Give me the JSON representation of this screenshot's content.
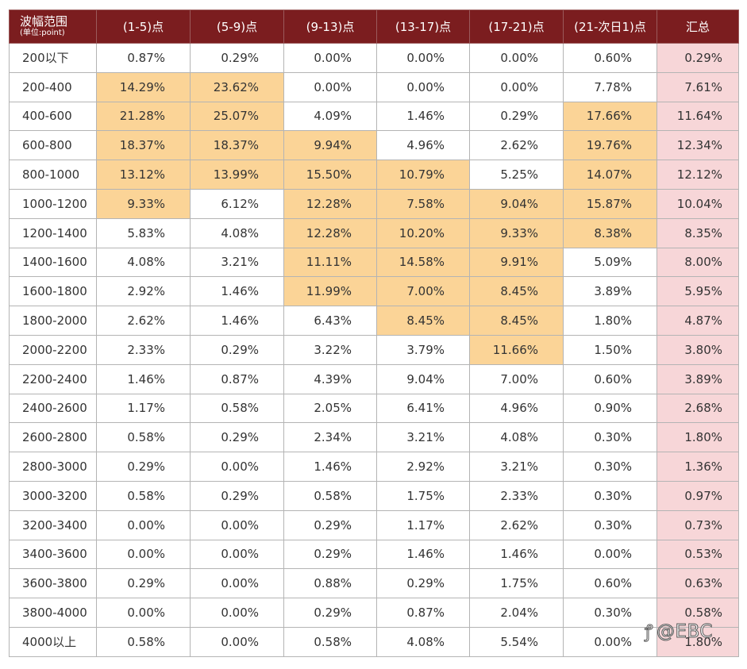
{
  "table": {
    "header": {
      "first_title": "波幅范围",
      "first_subtitle": "(单位:point)",
      "columns": [
        "(1-5)点",
        "(5-9)点",
        "(9-13)点",
        "(13-17)点",
        "(17-21)点",
        "(21-次日1)点",
        "汇总"
      ]
    },
    "colors": {
      "header_bg": "#7b1d1f",
      "highlight_bg": "#fbd497",
      "total_bg": "#f7d6d8"
    },
    "rows": [
      {
        "range": "200以下",
        "values": [
          "0.87%",
          "0.29%",
          "0.00%",
          "0.00%",
          "0.00%",
          "0.60%",
          "0.29%"
        ],
        "highlight": [
          0,
          0,
          0,
          0,
          0,
          0
        ]
      },
      {
        "range": "200-400",
        "values": [
          "14.29%",
          "23.62%",
          "0.00%",
          "0.00%",
          "0.00%",
          "7.78%",
          "7.61%"
        ],
        "highlight": [
          1,
          1,
          0,
          0,
          0,
          0
        ]
      },
      {
        "range": "400-600",
        "values": [
          "21.28%",
          "25.07%",
          "4.09%",
          "1.46%",
          "0.29%",
          "17.66%",
          "11.64%"
        ],
        "highlight": [
          1,
          1,
          0,
          0,
          0,
          1
        ]
      },
      {
        "range": "600-800",
        "values": [
          "18.37%",
          "18.37%",
          "9.94%",
          "4.96%",
          "2.62%",
          "19.76%",
          "12.34%"
        ],
        "highlight": [
          1,
          1,
          1,
          0,
          0,
          1
        ]
      },
      {
        "range": "800-1000",
        "values": [
          "13.12%",
          "13.99%",
          "15.50%",
          "10.79%",
          "5.25%",
          "14.07%",
          "12.12%"
        ],
        "highlight": [
          1,
          1,
          1,
          1,
          0,
          1
        ]
      },
      {
        "range": "1000-1200",
        "values": [
          "9.33%",
          "6.12%",
          "12.28%",
          "7.58%",
          "9.04%",
          "15.87%",
          "10.04%"
        ],
        "highlight": [
          1,
          0,
          1,
          1,
          1,
          1
        ]
      },
      {
        "range": "1200-1400",
        "values": [
          "5.83%",
          "4.08%",
          "12.28%",
          "10.20%",
          "9.33%",
          "8.38%",
          "8.35%"
        ],
        "highlight": [
          0,
          0,
          1,
          1,
          1,
          1
        ]
      },
      {
        "range": "1400-1600",
        "values": [
          "4.08%",
          "3.21%",
          "11.11%",
          "14.58%",
          "9.91%",
          "5.09%",
          "8.00%"
        ],
        "highlight": [
          0,
          0,
          1,
          1,
          1,
          0
        ]
      },
      {
        "range": "1600-1800",
        "values": [
          "2.92%",
          "1.46%",
          "11.99%",
          "7.00%",
          "8.45%",
          "3.89%",
          "5.95%"
        ],
        "highlight": [
          0,
          0,
          1,
          1,
          1,
          0
        ]
      },
      {
        "range": "1800-2000",
        "values": [
          "2.62%",
          "1.46%",
          "6.43%",
          "8.45%",
          "8.45%",
          "1.80%",
          "4.87%"
        ],
        "highlight": [
          0,
          0,
          0,
          1,
          1,
          0
        ]
      },
      {
        "range": "2000-2200",
        "values": [
          "2.33%",
          "0.29%",
          "3.22%",
          "3.79%",
          "11.66%",
          "1.50%",
          "3.80%"
        ],
        "highlight": [
          0,
          0,
          0,
          0,
          1,
          0
        ]
      },
      {
        "range": "2200-2400",
        "values": [
          "1.46%",
          "0.87%",
          "4.39%",
          "9.04%",
          "7.00%",
          "0.60%",
          "3.89%"
        ],
        "highlight": [
          0,
          0,
          0,
          0,
          0,
          0
        ]
      },
      {
        "range": "2400-2600",
        "values": [
          "1.17%",
          "0.58%",
          "2.05%",
          "6.41%",
          "4.96%",
          "0.90%",
          "2.68%"
        ],
        "highlight": [
          0,
          0,
          0,
          0,
          0,
          0
        ]
      },
      {
        "range": "2600-2800",
        "values": [
          "0.58%",
          "0.29%",
          "2.34%",
          "3.21%",
          "4.08%",
          "0.30%",
          "1.80%"
        ],
        "highlight": [
          0,
          0,
          0,
          0,
          0,
          0
        ]
      },
      {
        "range": "2800-3000",
        "values": [
          "0.29%",
          "0.00%",
          "1.46%",
          "2.92%",
          "3.21%",
          "0.30%",
          "1.36%"
        ],
        "highlight": [
          0,
          0,
          0,
          0,
          0,
          0
        ]
      },
      {
        "range": "3000-3200",
        "values": [
          "0.58%",
          "0.29%",
          "0.58%",
          "1.75%",
          "2.33%",
          "0.30%",
          "0.97%"
        ],
        "highlight": [
          0,
          0,
          0,
          0,
          0,
          0
        ]
      },
      {
        "range": "3200-3400",
        "values": [
          "0.00%",
          "0.00%",
          "0.29%",
          "1.17%",
          "2.62%",
          "0.30%",
          "0.73%"
        ],
        "highlight": [
          0,
          0,
          0,
          0,
          0,
          0
        ]
      },
      {
        "range": "3400-3600",
        "values": [
          "0.00%",
          "0.00%",
          "0.29%",
          "1.46%",
          "1.46%",
          "0.00%",
          "0.53%"
        ],
        "highlight": [
          0,
          0,
          0,
          0,
          0,
          0
        ]
      },
      {
        "range": "3600-3800",
        "values": [
          "0.29%",
          "0.00%",
          "0.88%",
          "0.29%",
          "1.75%",
          "0.60%",
          "0.63%"
        ],
        "highlight": [
          0,
          0,
          0,
          0,
          0,
          0
        ]
      },
      {
        "range": "3800-4000",
        "values": [
          "0.00%",
          "0.00%",
          "0.29%",
          "0.87%",
          "2.04%",
          "0.30%",
          "0.58%"
        ],
        "highlight": [
          0,
          0,
          0,
          0,
          0,
          0
        ]
      },
      {
        "range": "4000以上",
        "values": [
          "0.58%",
          "0.00%",
          "0.58%",
          "4.08%",
          "5.54%",
          "0.00%",
          "1.80%"
        ],
        "highlight": [
          0,
          0,
          0,
          0,
          0,
          0
        ]
      }
    ]
  },
  "watermark": {
    "text": "@EBC",
    "icon": "weibo-icon"
  }
}
